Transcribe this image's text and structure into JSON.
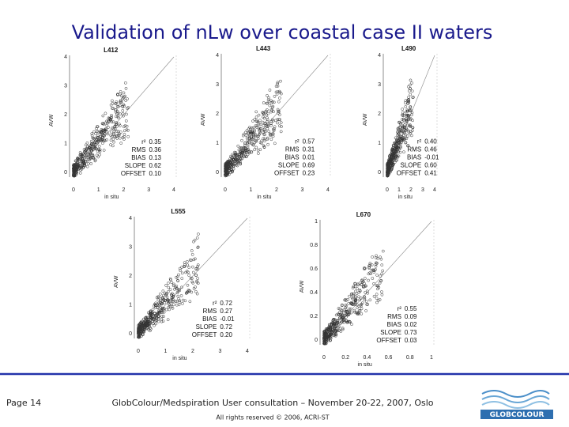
{
  "header": {
    "title": "Validation of nLw over coastal case II waters"
  },
  "panels": [
    {
      "label": "L412",
      "x_label": "in situ",
      "y_label": "AVW",
      "xticks": [
        "0",
        "1",
        "2",
        "3",
        "4"
      ],
      "yticks": [
        "0",
        "1",
        "2",
        "3",
        "4"
      ],
      "stats": [
        [
          "r²",
          "0.35"
        ],
        [
          "RMS",
          "0.36"
        ],
        [
          "BIAS",
          "0.13"
        ],
        [
          "SLOPE",
          "0.62"
        ],
        [
          "OFFSET",
          "0.10"
        ]
      ]
    },
    {
      "label": "L443",
      "x_label": "in situ",
      "y_label": "AVW",
      "xticks": [
        "0",
        "1",
        "2",
        "3",
        "4"
      ],
      "yticks": [
        "0",
        "1",
        "2",
        "3",
        "4"
      ],
      "stats": [
        [
          "r²",
          "0.57"
        ],
        [
          "RMS",
          "0.31"
        ],
        [
          "BIAS",
          "0.01"
        ],
        [
          "SLOPE",
          "0.69"
        ],
        [
          "OFFSET",
          "0.23"
        ]
      ]
    },
    {
      "label": "L490",
      "x_label": "in situ",
      "y_label": "AVW",
      "xticks": [
        "0",
        "1",
        "2",
        "3",
        "4"
      ],
      "yticks": [
        "0",
        "1",
        "2",
        "3",
        "4"
      ],
      "stats": [
        [
          "r²",
          "0.40"
        ],
        [
          "RMS",
          "0.46"
        ],
        [
          "BIAS",
          "-0.01"
        ],
        [
          "SLOPE",
          "0.60"
        ],
        [
          "OFFSET",
          "0.41"
        ]
      ]
    },
    {
      "label": "L555",
      "x_label": "in situ",
      "y_label": "AVW",
      "xticks": [
        "0",
        "1",
        "2",
        "3",
        "4"
      ],
      "yticks": [
        "0",
        "1",
        "2",
        "3",
        "4"
      ],
      "stats": [
        [
          "r²",
          "0.72"
        ],
        [
          "RMS",
          "0.27"
        ],
        [
          "BIAS",
          "-0.01"
        ],
        [
          "SLOPE",
          "0.72"
        ],
        [
          "OFFSET",
          "0.20"
        ]
      ]
    },
    {
      "label": "L670",
      "x_label": "in situ",
      "y_label": "AVW",
      "xticks": [
        "0",
        "0.2",
        "0.4",
        "0.6",
        "0.8",
        "1"
      ],
      "yticks": [
        "0",
        "0.2",
        "0.4",
        "0.6",
        "0.8",
        "1"
      ],
      "stats": [
        [
          "r²",
          "0.55"
        ],
        [
          "RMS",
          "0.09"
        ],
        [
          "BIAS",
          "0.02"
        ],
        [
          "SLOPE",
          "0.73"
        ],
        [
          "OFFSET",
          "0.03"
        ]
      ]
    }
  ],
  "footer": {
    "page": "Page 14",
    "event": "GlobColour/Medspiration User consultation – November 20-22, 2007, Oslo",
    "rights": "All rights reserved © 2006, ACRI-ST",
    "logo": "GLOBCOLOUR"
  }
}
